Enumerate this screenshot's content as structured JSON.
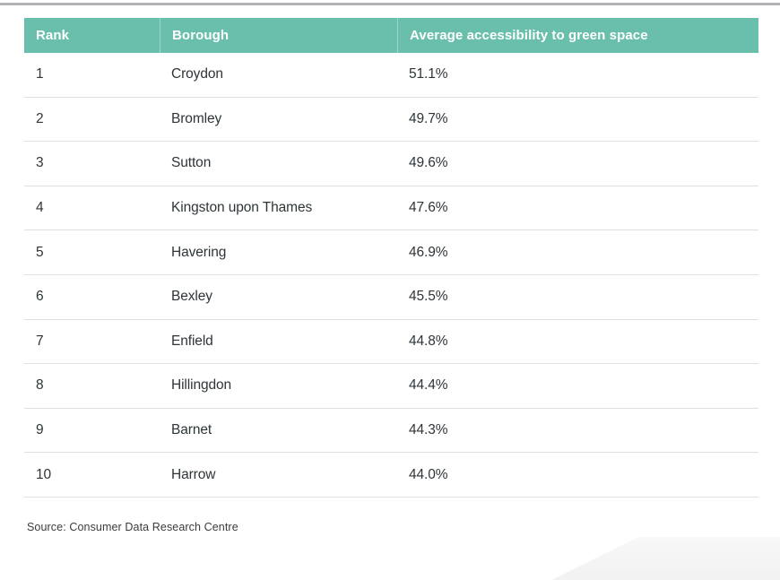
{
  "colors": {
    "header_bg": "#69beac",
    "header_text": "#ffffff",
    "body_text": "#2e3538",
    "row_separator": "#e0e0e0",
    "top_rule": "#b3b1b5",
    "page_bg": "#ffffff"
  },
  "chart_data": {
    "type": "table",
    "columns": [
      "Rank",
      "Borough",
      "Average accessibility to green space"
    ],
    "rows": [
      [
        "1",
        "Croydon",
        "51.1%"
      ],
      [
        "2",
        "Bromley",
        "49.7%"
      ],
      [
        "3",
        "Sutton",
        "49.6%"
      ],
      [
        "4",
        "Kingston upon Thames",
        "47.6%"
      ],
      [
        "5",
        "Havering",
        "46.9%"
      ],
      [
        "6",
        "Bexley",
        "45.5%"
      ],
      [
        "7",
        "Enfield",
        "44.8%"
      ],
      [
        "8",
        "Hillingdon",
        "44.4%"
      ],
      [
        "9",
        "Barnet",
        "44.3%"
      ],
      [
        "10",
        "Harrow",
        "44.0%"
      ]
    ],
    "source": "Source: Consumer Data Research Centre",
    "title": "",
    "layout_hints": "three-column ranked table, teal header band, light gray row separators"
  }
}
